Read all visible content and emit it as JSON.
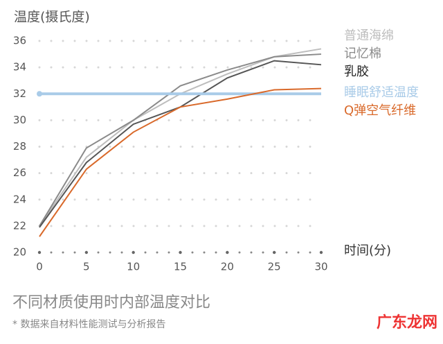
{
  "chart_data": {
    "type": "line",
    "y_label": "温度(摄氏度)",
    "x_label": "时间(分)",
    "title": "不同材质使用时内部温度对比",
    "note": "* 数据来自材料性能测试与分析报告",
    "watermark": "广东龙网",
    "x": [
      0,
      5,
      10,
      15,
      20,
      25,
      30
    ],
    "xlim": [
      0,
      30
    ],
    "xticks": [
      0,
      5,
      10,
      15,
      20,
      25,
      30
    ],
    "ylim": [
      20,
      36
    ],
    "yticks": [
      20,
      22,
      24,
      26,
      28,
      30,
      32,
      34,
      36
    ],
    "grid": true,
    "series": [
      {
        "name": "普通海绵",
        "color": "#bdbdbd",
        "values": [
          22,
          27.2,
          30,
          32,
          33.5,
          34.8,
          35.4
        ]
      },
      {
        "name": "记忆棉",
        "color": "#8a8a8a",
        "values": [
          22,
          27.9,
          30,
          32.6,
          33.8,
          34.8,
          35
        ]
      },
      {
        "name": "乳胶",
        "color": "#555555",
        "values": [
          21.9,
          26.8,
          29.7,
          31,
          33.2,
          34.5,
          34.2
        ]
      },
      {
        "name": "睡眠舒适温度",
        "color": "#a9cbe8",
        "values": [
          32,
          32,
          32,
          32,
          32,
          32,
          32
        ]
      },
      {
        "name": "Q弹空气纤维",
        "color": "#d9692a",
        "values": [
          21.2,
          26.3,
          29.1,
          31,
          31.6,
          32.3,
          32.4
        ]
      }
    ]
  }
}
